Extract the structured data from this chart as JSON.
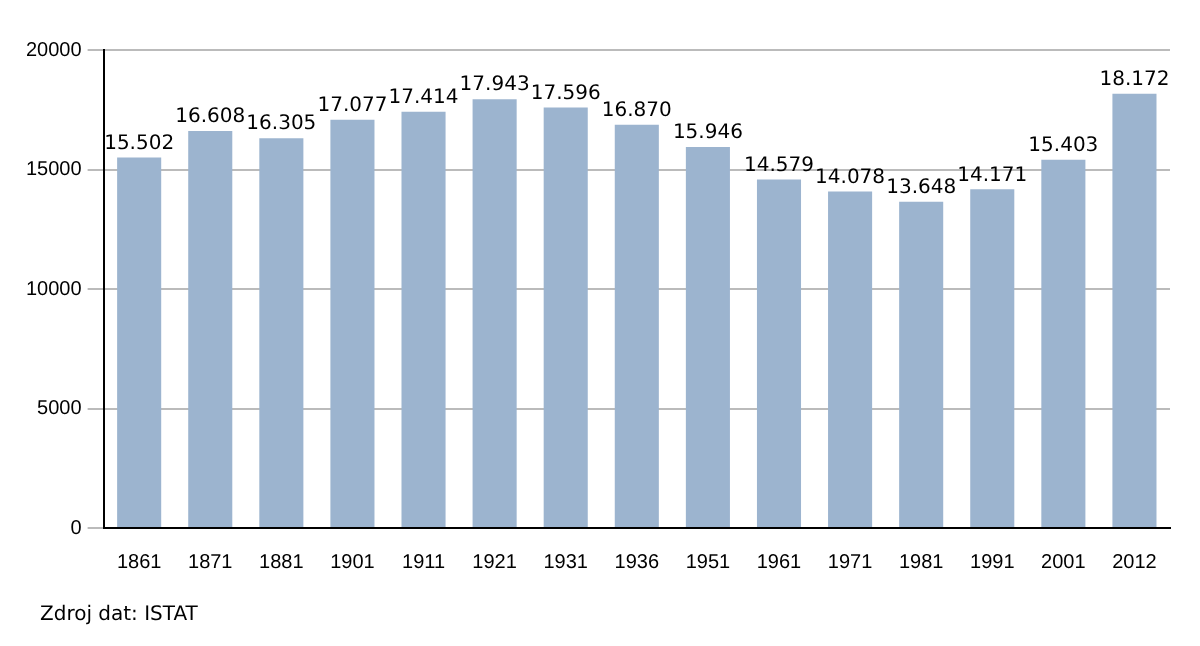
{
  "chart_data": {
    "type": "bar",
    "categories": [
      "1861",
      "1871",
      "1881",
      "1901",
      "1911",
      "1921",
      "1931",
      "1936",
      "1951",
      "1961",
      "1971",
      "1981",
      "1991",
      "2001",
      "2012"
    ],
    "values": [
      15502,
      16608,
      16305,
      17077,
      17414,
      17943,
      17596,
      16870,
      15946,
      14579,
      14078,
      13648,
      14171,
      15403,
      18172
    ],
    "value_labels": [
      "15.502",
      "16.608",
      "16.305",
      "17.077",
      "17.414",
      "17.943",
      "17.596",
      "16.870",
      "15.946",
      "14.579",
      "14.078",
      "13.648",
      "14.171",
      "15.403",
      "18.172"
    ],
    "color": "#9cb4cf",
    "ylim": [
      0,
      20000
    ],
    "yticks": [
      0,
      5000,
      10000,
      15000,
      20000
    ],
    "grid": "y",
    "legend": false,
    "annotations": [
      "Zdroj dat: ISTAT"
    ]
  }
}
